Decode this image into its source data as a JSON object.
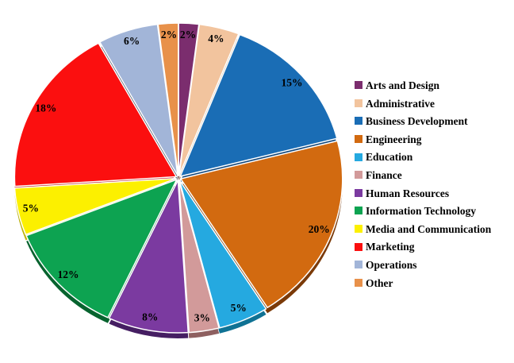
{
  "page": {
    "background": "#FFFFFF"
  },
  "chart_data": {
    "type": "pie",
    "title": "",
    "legend_position": "right",
    "value_unit": "%",
    "start_angle_deg": 0,
    "direction": "clockwise",
    "style": "3d-exploded-pie",
    "label_placement": "inside-end",
    "label_color": "#000000",
    "legend_text_color": "#000000",
    "slices": [
      {
        "label": "Arts and Design",
        "value": 2,
        "pct_label": "2%",
        "color": "#7B2D6E",
        "side_color": "#471A41"
      },
      {
        "label": "Administrative",
        "value": 4,
        "pct_label": "4%",
        "color": "#F2C49E",
        "side_color": "#A98A60"
      },
      {
        "label": "Business Development",
        "value": 15,
        "pct_label": "15%",
        "color": "#1A6DB5",
        "side_color": "#14497D"
      },
      {
        "label": "Engineering",
        "value": 20,
        "pct_label": "20%",
        "color": "#D26A10",
        "side_color": "#7B3A08"
      },
      {
        "label": "Education",
        "value": 5,
        "pct_label": "5%",
        "color": "#25A9E0",
        "side_color": "#0F7294"
      },
      {
        "label": "Finance",
        "value": 3,
        "pct_label": "3%",
        "color": "#D29A9A",
        "side_color": "#8E6060"
      },
      {
        "label": "Human Resources",
        "value": 8,
        "pct_label": "8%",
        "color": "#7B3AA0",
        "side_color": "#451E62"
      },
      {
        "label": "Information Technology",
        "value": 12,
        "pct_label": "12%",
        "color": "#0DA351",
        "side_color": "#07632E"
      },
      {
        "label": "Media and Communication",
        "value": 5,
        "pct_label": "5%",
        "color": "#FCF000",
        "side_color": "#BBB20A"
      },
      {
        "label": "Marketing",
        "value": 18,
        "pct_label": "18%",
        "color": "#FB0F0F",
        "side_color": "#B90707"
      },
      {
        "label": "Operations",
        "value": 6,
        "pct_label": "6%",
        "color": "#A2B5D8",
        "side_color": "#3E4A5C"
      },
      {
        "label": "Other",
        "value": 2,
        "pct_label": "2%",
        "color": "#E8914A",
        "side_color": "#8A5526"
      }
    ]
  }
}
